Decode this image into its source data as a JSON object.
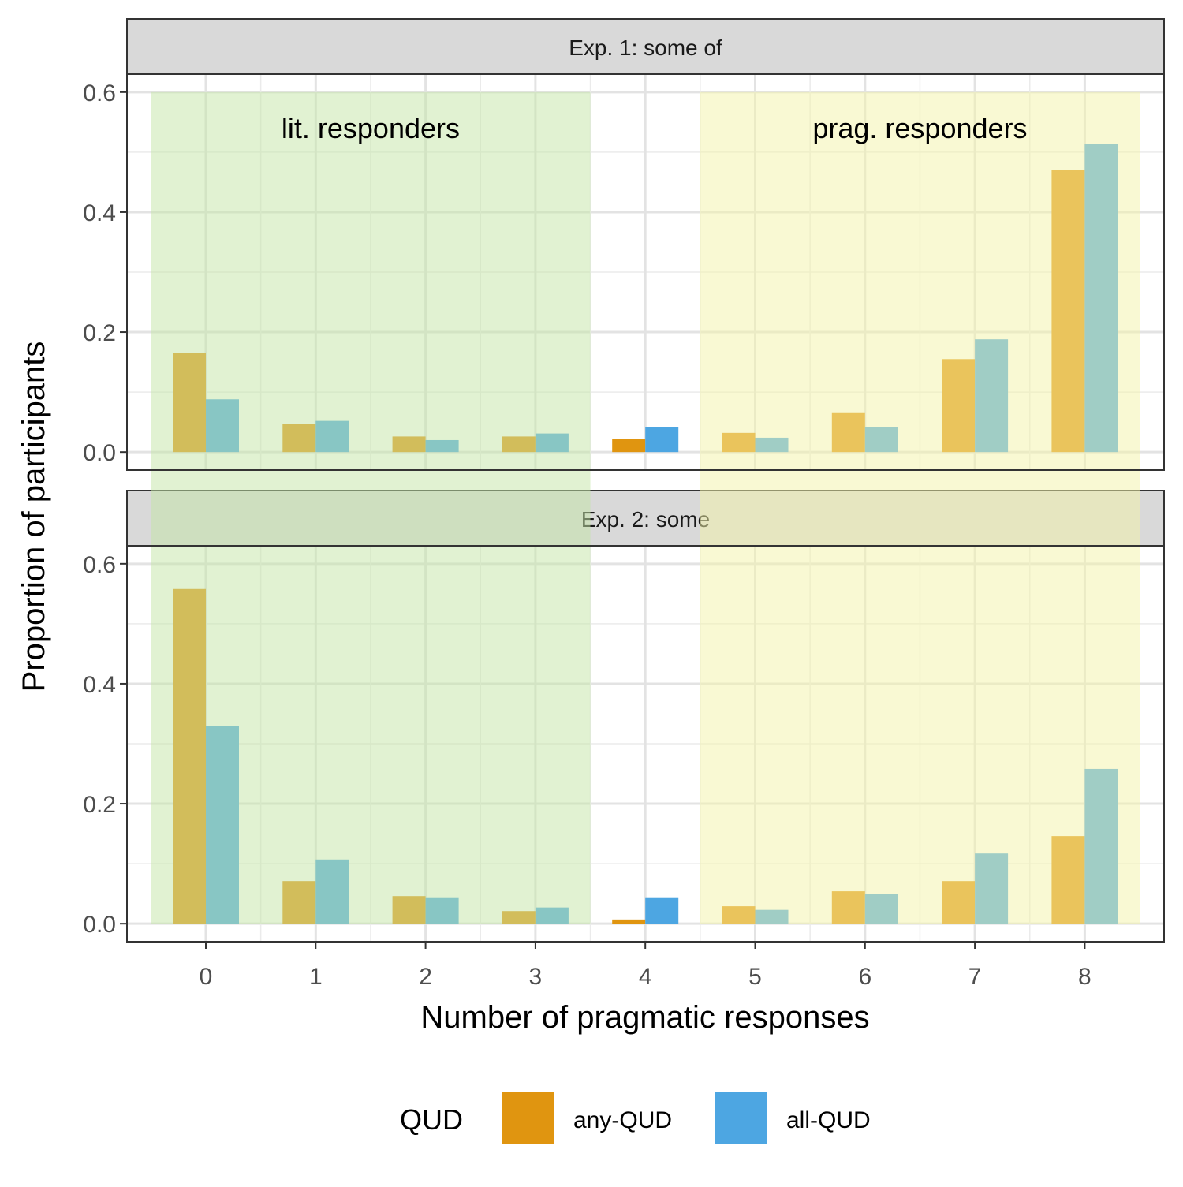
{
  "chart_data": {
    "type": "bar",
    "xlabel": "Number of pragmatic responses",
    "ylabel": "Proportion of participants",
    "categories": [
      "0",
      "1",
      "2",
      "3",
      "4",
      "5",
      "6",
      "7",
      "8"
    ],
    "ylim": [
      -0.03,
      0.63
    ],
    "yticks": [
      "0.0",
      "0.2",
      "0.4",
      "0.6"
    ],
    "grid": true,
    "legend": {
      "title": "QUD",
      "position": "bottom",
      "entries": [
        {
          "label": "any-QUD",
          "color": "#E09510"
        },
        {
          "label": "all-QUD",
          "color": "#4DA6E2"
        }
      ]
    },
    "regions": [
      {
        "label": "lit. responders",
        "from": "0",
        "to": "3",
        "color": "#c4e6a6"
      },
      {
        "label": "prag. responders",
        "from": "5",
        "to": "8",
        "color": "#f3f3a8"
      }
    ],
    "panels": [
      {
        "title": "Exp. 1: some of",
        "series": [
          {
            "name": "any-QUD",
            "values": [
              0.165,
              0.047,
              0.026,
              0.026,
              0.022,
              0.032,
              0.065,
              0.155,
              0.47
            ]
          },
          {
            "name": "all-QUD",
            "values": [
              0.088,
              0.052,
              0.02,
              0.031,
              0.042,
              0.024,
              0.042,
              0.188,
              0.513
            ]
          }
        ]
      },
      {
        "title": "Exp. 2: some",
        "series": [
          {
            "name": "any-QUD",
            "values": [
              0.558,
              0.071,
              0.046,
              0.021,
              0.007,
              0.029,
              0.054,
              0.071,
              0.146
            ]
          },
          {
            "name": "all-QUD",
            "values": [
              0.33,
              0.107,
              0.044,
              0.027,
              0.044,
              0.023,
              0.049,
              0.117,
              0.258
            ]
          }
        ]
      }
    ]
  }
}
